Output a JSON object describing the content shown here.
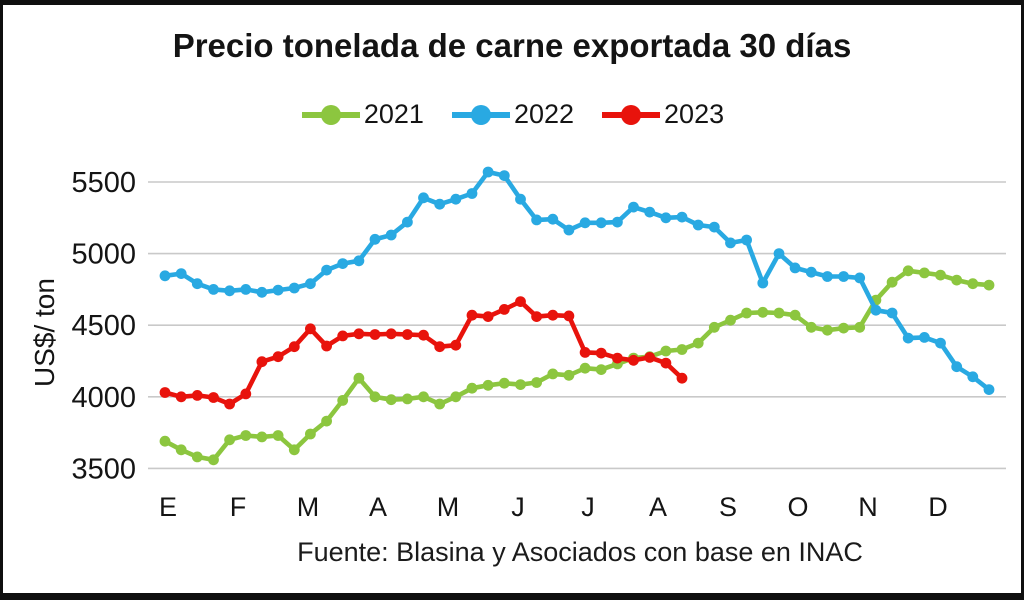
{
  "header": {
    "title": "Precio tonelada de carne exportada 30 días"
  },
  "chart_data": {
    "type": "line",
    "title": "Precio tonelada de carne exportada 30 días",
    "ylabel": "US$/ ton",
    "xlabel": "",
    "source_note": "Fuente: Blasina y Asociados con base en INAC",
    "grid": true,
    "legend_position": "top",
    "x_axis": {
      "tick_labels": [
        "E",
        "F",
        "M",
        "A",
        "M",
        "J",
        "J",
        "A",
        "S",
        "O",
        "N",
        "D"
      ],
      "unit": "months (weekly data points)"
    },
    "y_axis": {
      "ticks": [
        3500,
        4000,
        4500,
        5000,
        5500
      ],
      "range": [
        3400,
        5650
      ]
    },
    "series": [
      {
        "name": "2021",
        "color": "#8CC63F",
        "values": [
          3690,
          3630,
          3580,
          3560,
          3700,
          3730,
          3720,
          3730,
          3630,
          3740,
          3830,
          3975,
          4130,
          4000,
          3980,
          3985,
          4000,
          3950,
          4000,
          4060,
          4080,
          4095,
          4085,
          4100,
          4160,
          4150,
          4200,
          4190,
          4230,
          4270,
          4280,
          4320,
          4330,
          4375,
          4485,
          4535,
          4585,
          4590,
          4585,
          4570,
          4485,
          4465,
          4480,
          4485,
          4675,
          4800,
          4880,
          4865,
          4850,
          4815,
          4790,
          4780
        ]
      },
      {
        "name": "2022",
        "color": "#29A9E2",
        "values": [
          4845,
          4860,
          4790,
          4750,
          4740,
          4750,
          4730,
          4745,
          4760,
          4790,
          4885,
          4930,
          4950,
          5100,
          5130,
          5220,
          5390,
          5345,
          5380,
          5420,
          5570,
          5545,
          5380,
          5235,
          5240,
          5165,
          5215,
          5215,
          5220,
          5325,
          5290,
          5250,
          5255,
          5200,
          5185,
          5075,
          5095,
          4795,
          5000,
          4900,
          4870,
          4840,
          4840,
          4830,
          4605,
          4585,
          4410,
          4415,
          4375,
          4210,
          4140,
          4050
        ]
      },
      {
        "name": "2023",
        "color": "#E8130C",
        "values": [
          4030,
          4000,
          4010,
          3995,
          3950,
          4020,
          4245,
          4280,
          4350,
          4475,
          4355,
          4425,
          4440,
          4435,
          4440,
          4435,
          4430,
          4350,
          4360,
          4570,
          4560,
          4610,
          4665,
          4560,
          4570,
          4565,
          4310,
          4305,
          4270,
          4255,
          4275,
          4235,
          4130
        ]
      }
    ]
  }
}
